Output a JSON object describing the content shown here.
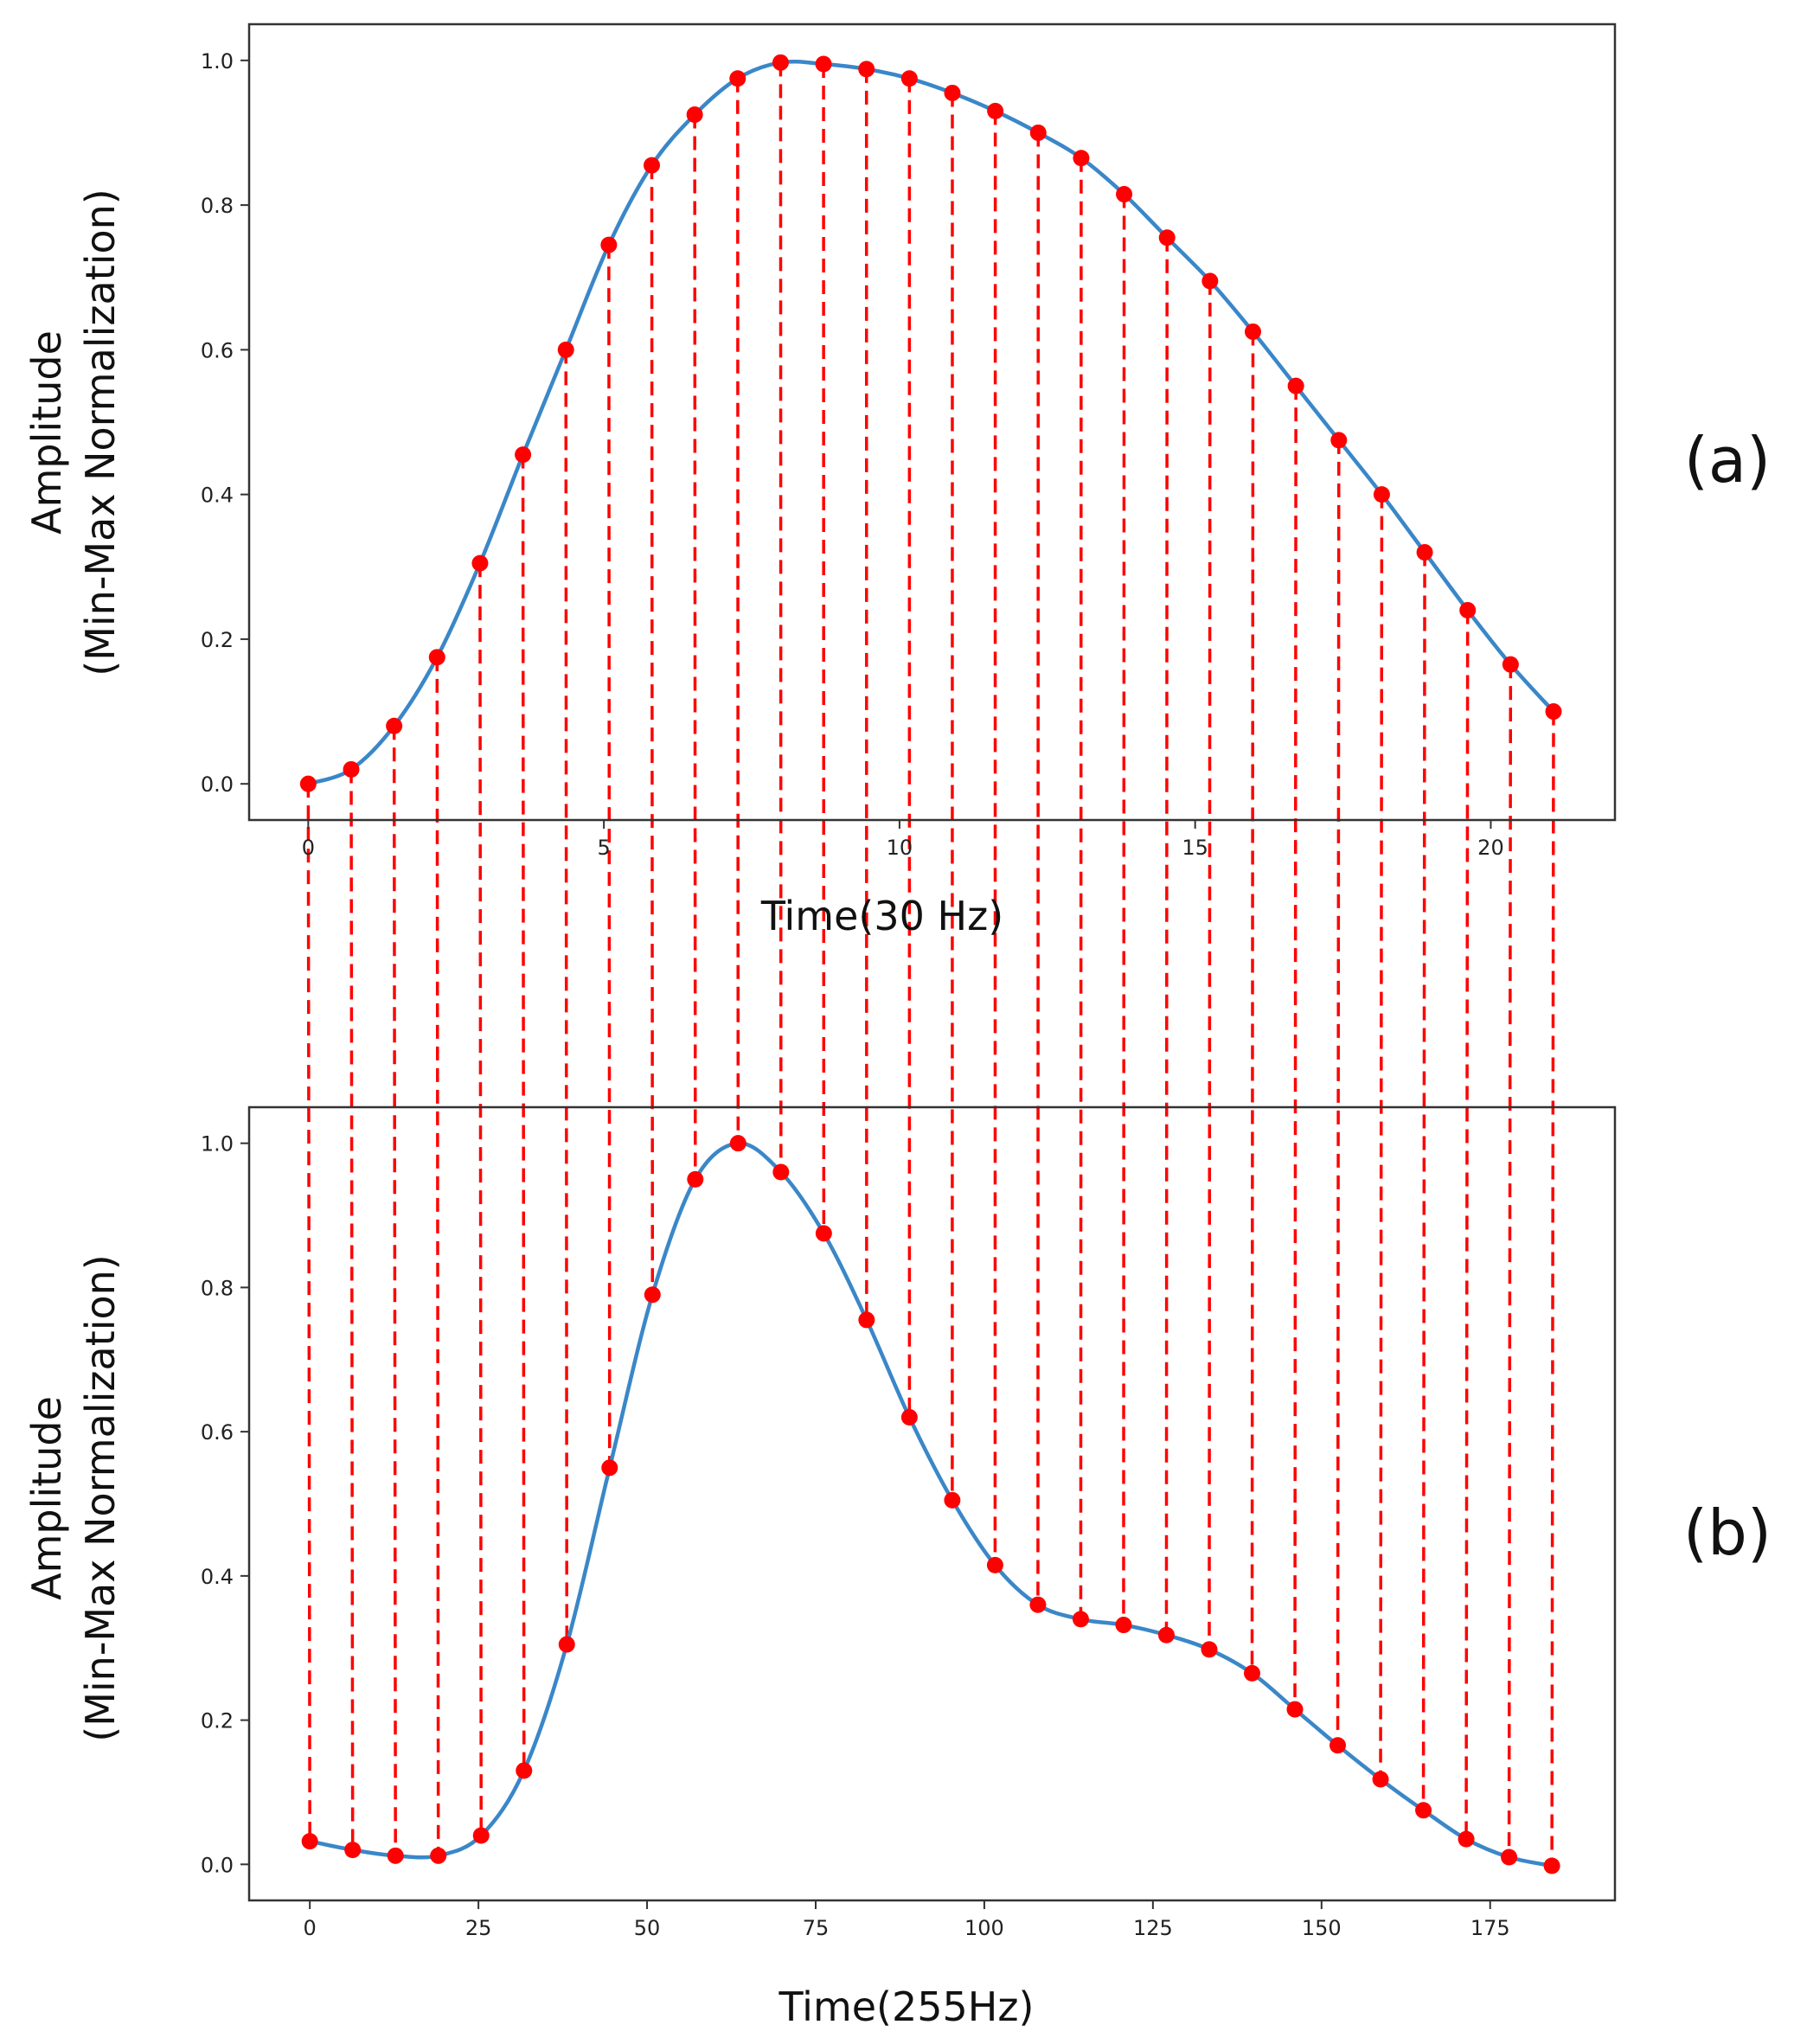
{
  "colors": {
    "line": "#3a87c8",
    "marker": "#ff0000",
    "connector": "#ff0000",
    "frame": "#333333"
  },
  "chart_data": [
    {
      "id": "a",
      "type": "line",
      "panel_label": "(a)",
      "xlabel": "Time(30 Hz)",
      "ylabel_line1": "Amplitude",
      "ylabel_line2": "(Min-Max Normalization)",
      "xlim": [
        -1.0,
        22.1
      ],
      "ylim": [
        -0.05,
        1.05
      ],
      "xticks": [
        0,
        5,
        10,
        15,
        20
      ],
      "xtick_labels": [
        "0",
        "5",
        "10",
        "15",
        "20"
      ],
      "yticks": [
        0.0,
        0.2,
        0.4,
        0.6,
        0.8,
        1.0
      ],
      "ytick_labels": [
        "0.0",
        "0.2",
        "0.4",
        "0.6",
        "0.8",
        "1.0"
      ],
      "x": [
        0,
        0.7263,
        1.4525,
        2.1788,
        2.905,
        3.6313,
        4.3575,
        5.0838,
        5.81,
        6.5363,
        7.2625,
        7.9888,
        8.715,
        9.4413,
        10.1675,
        10.8938,
        11.62,
        12.3463,
        13.0725,
        13.7988,
        14.525,
        15.2513,
        15.9775,
        16.7038,
        17.43,
        18.1563,
        18.8825,
        19.6088,
        20.335,
        21.0613
      ],
      "y": [
        0.0,
        0.02,
        0.08,
        0.175,
        0.305,
        0.455,
        0.6,
        0.745,
        0.855,
        0.925,
        0.975,
        0.997,
        0.995,
        0.988,
        0.975,
        0.955,
        0.93,
        0.9,
        0.865,
        0.815,
        0.755,
        0.695,
        0.625,
        0.55,
        0.475,
        0.4,
        0.32,
        0.24,
        0.165,
        0.1
      ]
    },
    {
      "id": "b",
      "type": "line",
      "panel_label": "(b)",
      "xlabel": "Time(255Hz)",
      "ylabel_line1": "Amplitude",
      "ylabel_line2": "(Min-Max Normalization)",
      "xlim": [
        -9.0,
        193.5
      ],
      "ylim": [
        -0.05,
        1.05
      ],
      "xticks": [
        0,
        25,
        50,
        75,
        100,
        125,
        150,
        175
      ],
      "xtick_labels": [
        "0",
        "25",
        "50",
        "75",
        "100",
        "125",
        "150",
        "175"
      ],
      "yticks": [
        0.0,
        0.2,
        0.4,
        0.6,
        0.8,
        1.0
      ],
      "ytick_labels": [
        "0.0",
        "0.2",
        "0.4",
        "0.6",
        "0.8",
        "1.0"
      ],
      "x": [
        0,
        6.35,
        12.7,
        19.05,
        25.4,
        31.75,
        38.1,
        44.45,
        50.8,
        57.15,
        63.5,
        69.85,
        76.2,
        82.55,
        88.9,
        95.25,
        101.6,
        107.95,
        114.3,
        120.65,
        127.0,
        133.35,
        139.7,
        146.05,
        152.4,
        158.75,
        165.1,
        171.45,
        177.8,
        184.15
      ],
      "y": [
        0.032,
        0.02,
        0.012,
        0.012,
        0.04,
        0.13,
        0.305,
        0.55,
        0.79,
        0.95,
        1.0,
        0.96,
        0.875,
        0.755,
        0.62,
        0.505,
        0.415,
        0.36,
        0.34,
        0.332,
        0.318,
        0.298,
        0.265,
        0.215,
        0.165,
        0.118,
        0.075,
        0.035,
        0.01,
        -0.002
      ]
    }
  ]
}
